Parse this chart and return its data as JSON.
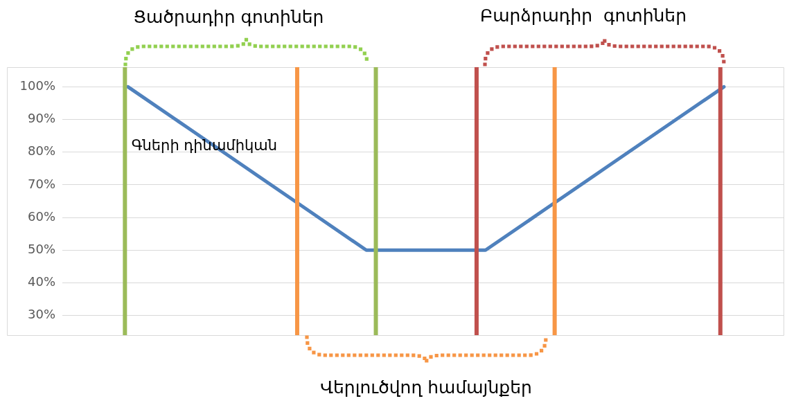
{
  "chart_data": {
    "type": "line",
    "tick_labels": "y",
    "categories": [
      null,
      null,
      null,
      null,
      null,
      null,
      null,
      null,
      null,
      null,
      null
    ],
    "ylim": [
      24,
      106
    ],
    "yticks": [
      {
        "value": 30,
        "label": "30%"
      },
      {
        "value": 40,
        "label": "40%"
      },
      {
        "value": 50,
        "label": "50%"
      },
      {
        "value": 60,
        "label": "60%"
      },
      {
        "value": 70,
        "label": "70%"
      },
      {
        "value": 80,
        "label": "80%"
      },
      {
        "value": 90,
        "label": "90%"
      },
      {
        "value": 100,
        "label": "100%"
      }
    ],
    "grid": "y",
    "legend": false,
    "marker": "none",
    "line_style": "solid",
    "series": [
      {
        "name": "Գների դինամիկան",
        "color": "#4f81bd",
        "values": [
          100,
          87.5,
          75,
          62.5,
          50,
          50,
          50,
          62.5,
          75,
          87.5,
          100
        ]
      }
    ],
    "annotations": [
      "Ցածրադիր գոտիներ",
      "Բարձրադիր  գոտիներ",
      "Վերլուծվող համայնքեր"
    ]
  }
}
